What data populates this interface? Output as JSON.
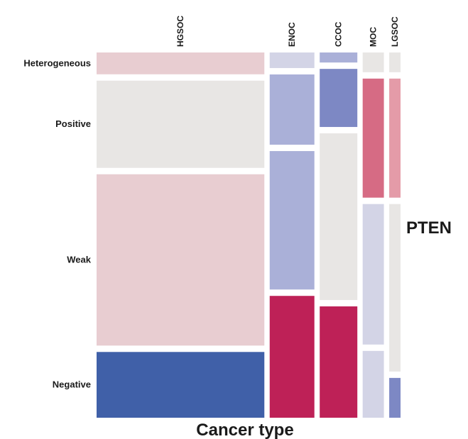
{
  "chart_data": {
    "type": "mosaic",
    "xlabel": "Cancer type",
    "ylabel": "PTEN",
    "categories": [
      "HGSOC",
      "ENOC",
      "CCOC",
      "MOC",
      "LGSOC"
    ],
    "column_widths": [
      59.3,
      15.8,
      13.3,
      7.5,
      4.0
    ],
    "series": [
      {
        "name": "Heterogeneous",
        "values": [
          6.3,
          4.5,
          2.9,
          5.7,
          5.7
        ],
        "colors": [
          "#e8cdd1",
          "#d3d4e6",
          "#aab0d8",
          "#e8e6e4",
          "#e8e6e4"
        ]
      },
      {
        "name": "Positive",
        "values": [
          25.2,
          20.3,
          16.8,
          34.4,
          34.4
        ],
        "colors": [
          "#e8e6e4",
          "#aab0d8",
          "#7d88c4",
          "#d66b84",
          "#e49ba8"
        ]
      },
      {
        "name": "Weak",
        "values": [
          49.5,
          40.0,
          48.2,
          40.6,
          48.4
        ],
        "colors": [
          "#e8cdd1",
          "#aab0d8",
          "#e8e6e4",
          "#d3d4e6",
          "#e8e6e4"
        ]
      },
      {
        "name": "Negative",
        "values": [
          19.0,
          35.2,
          32.2,
          19.3,
          11.5
        ],
        "colors": [
          "#4060a8",
          "#be2157",
          "#be2157",
          "#d3d4e6",
          "#7d88c4"
        ]
      }
    ]
  }
}
